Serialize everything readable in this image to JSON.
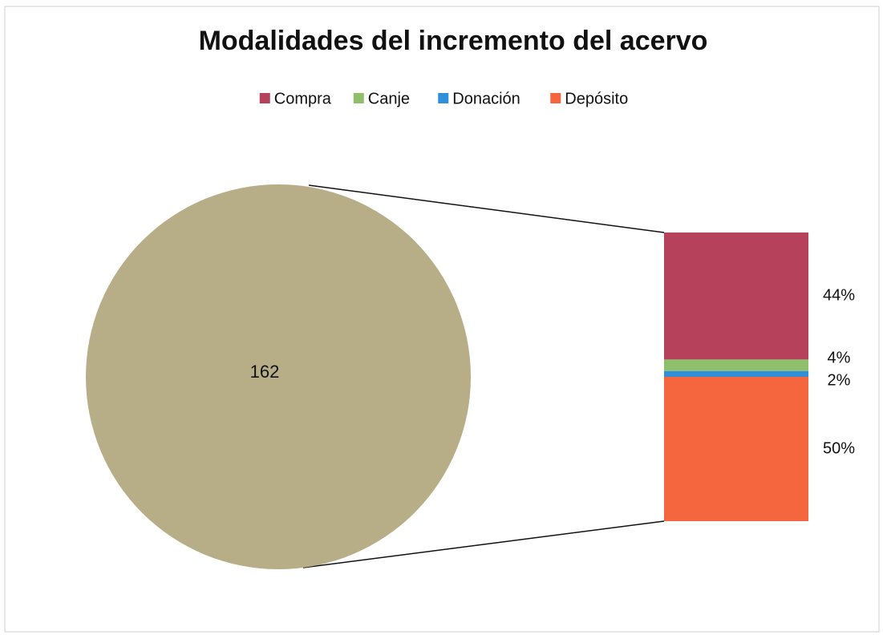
{
  "chart_data": {
    "type": "bar_of_pie",
    "title": "Modalidades del incremento del acervo",
    "pie_value": 162,
    "pie_color": "#b7ae88",
    "categories": [
      "Compra",
      "Canje",
      "Donación",
      "Depósito"
    ],
    "values": [
      44,
      4,
      2,
      50
    ],
    "value_labels": [
      "44%",
      "4%",
      "2%",
      "50%"
    ],
    "colors": [
      "#b5425a",
      "#8fbf6a",
      "#2f8fd8",
      "#f5663f"
    ],
    "legend": "top"
  }
}
